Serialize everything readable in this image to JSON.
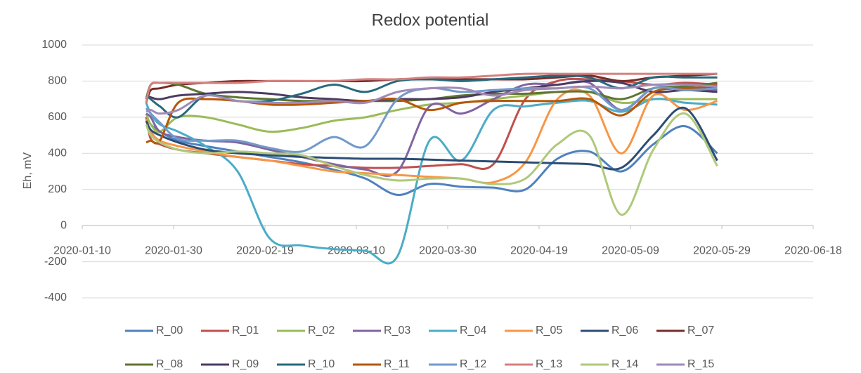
{
  "chart_data": {
    "type": "line",
    "title": "Redox potential",
    "y_label": "Eh, mV",
    "x": [
      "2020-01-24",
      "2020-01-25",
      "2020-01-27",
      "2020-01-31",
      "2020-02-06",
      "2020-02-13",
      "2020-02-20",
      "2020-02-27",
      "2020-03-05",
      "2020-03-12",
      "2020-03-19",
      "2020-03-26",
      "2020-04-02",
      "2020-04-09",
      "2020-04-16",
      "2020-04-23",
      "2020-04-30",
      "2020-05-07",
      "2020-05-14",
      "2020-05-21",
      "2020-05-28"
    ],
    "xlim": [
      "2020-01-10",
      "2020-06-18"
    ],
    "xticks": [
      "2020-01-10",
      "2020-01-30",
      "2020-02-19",
      "2020-03-10",
      "2020-03-30",
      "2020-04-19",
      "2020-05-09",
      "2020-05-29",
      "2020-06-18"
    ],
    "ylim": [
      -400,
      1000
    ],
    "yticks": [
      -400,
      -200,
      0,
      200,
      400,
      600,
      800,
      1000
    ],
    "grid": true,
    "smooth": true,
    "legend": "bottom",
    "series": [
      {
        "name": "R_00",
        "color": "#4f81bd",
        "values": [
          600,
          560,
          520,
          470,
          440,
          410,
          380,
          350,
          310,
          260,
          170,
          230,
          215,
          210,
          200,
          370,
          410,
          300,
          450,
          550,
          400
        ]
      },
      {
        "name": "R_01",
        "color": "#c0504d",
        "values": [
          600,
          480,
          450,
          420,
          400,
          380,
          360,
          340,
          330,
          320,
          320,
          330,
          340,
          340,
          700,
          800,
          810,
          800,
          780,
          790,
          780
        ]
      },
      {
        "name": "R_02",
        "color": "#9bbb59",
        "values": [
          620,
          560,
          520,
          600,
          600,
          560,
          520,
          540,
          580,
          600,
          640,
          670,
          680,
          700,
          720,
          740,
          740,
          680,
          700,
          700,
          700
        ]
      },
      {
        "name": "R_03",
        "color": "#8064a2",
        "values": [
          620,
          600,
          520,
          490,
          470,
          460,
          420,
          380,
          340,
          310,
          300,
          660,
          620,
          700,
          780,
          780,
          790,
          640,
          760,
          760,
          750
        ]
      },
      {
        "name": "R_04",
        "color": "#4bacc6",
        "values": [
          680,
          620,
          560,
          520,
          440,
          300,
          -70,
          -110,
          -130,
          -140,
          -170,
          470,
          360,
          640,
          660,
          680,
          690,
          630,
          700,
          680,
          670
        ]
      },
      {
        "name": "R_05",
        "color": "#f79646",
        "values": [
          590,
          520,
          470,
          440,
          410,
          380,
          360,
          330,
          300,
          290,
          280,
          270,
          260,
          240,
          350,
          700,
          720,
          400,
          720,
          640,
          690
        ]
      },
      {
        "name": "R_06",
        "color": "#2c4d75",
        "values": [
          580,
          530,
          500,
          460,
          420,
          400,
          390,
          380,
          375,
          370,
          370,
          365,
          360,
          355,
          350,
          345,
          340,
          320,
          500,
          650,
          360
        ]
      },
      {
        "name": "R_07",
        "color": "#772c2a",
        "values": [
          680,
          750,
          760,
          780,
          790,
          800,
          800,
          800,
          800,
          800,
          810,
          810,
          810,
          810,
          810,
          820,
          830,
          800,
          820,
          830,
          840
        ]
      },
      {
        "name": "R_08",
        "color": "#5f7530",
        "values": [
          700,
          780,
          790,
          780,
          730,
          710,
          700,
          690,
          690,
          690,
          690,
          700,
          720,
          730,
          730,
          740,
          740,
          700,
          760,
          770,
          790
        ]
      },
      {
        "name": "R_09",
        "color": "#4d3b62",
        "values": [
          720,
          710,
          700,
          720,
          730,
          740,
          730,
          710,
          700,
          690,
          700,
          700,
          710,
          740,
          760,
          780,
          800,
          790,
          740,
          750,
          740
        ]
      },
      {
        "name": "R_10",
        "color": "#276a7c",
        "values": [
          720,
          700,
          660,
          600,
          720,
          690,
          690,
          730,
          780,
          740,
          800,
          810,
          800,
          810,
          820,
          830,
          820,
          760,
          820,
          820,
          820
        ]
      },
      {
        "name": "R_11",
        "color": "#b65708",
        "values": [
          460,
          470,
          470,
          680,
          700,
          690,
          670,
          670,
          680,
          690,
          700,
          640,
          680,
          690,
          690,
          690,
          700,
          610,
          740,
          760,
          770
        ]
      },
      {
        "name": "R_12",
        "color": "#729aca",
        "values": [
          650,
          620,
          570,
          480,
          470,
          470,
          430,
          410,
          490,
          440,
          700,
          760,
          740,
          750,
          760,
          760,
          760,
          640,
          760,
          750,
          760
        ]
      },
      {
        "name": "R_13",
        "color": "#d4807e",
        "values": [
          680,
          780,
          790,
          790,
          790,
          790,
          800,
          800,
          800,
          810,
          810,
          820,
          820,
          830,
          840,
          840,
          840,
          840,
          840,
          840,
          840
        ]
      },
      {
        "name": "R_14",
        "color": "#afc97a",
        "values": [
          560,
          500,
          460,
          420,
          400,
          410,
          400,
          390,
          330,
          280,
          250,
          260,
          260,
          230,
          260,
          450,
          500,
          60,
          420,
          620,
          330
        ]
      },
      {
        "name": "R_15",
        "color": "#a08ab8",
        "values": [
          630,
          640,
          620,
          640,
          720,
          690,
          680,
          680,
          690,
          680,
          740,
          760,
          760,
          720,
          750,
          760,
          770,
          760,
          780,
          780,
          770
        ]
      }
    ]
  }
}
